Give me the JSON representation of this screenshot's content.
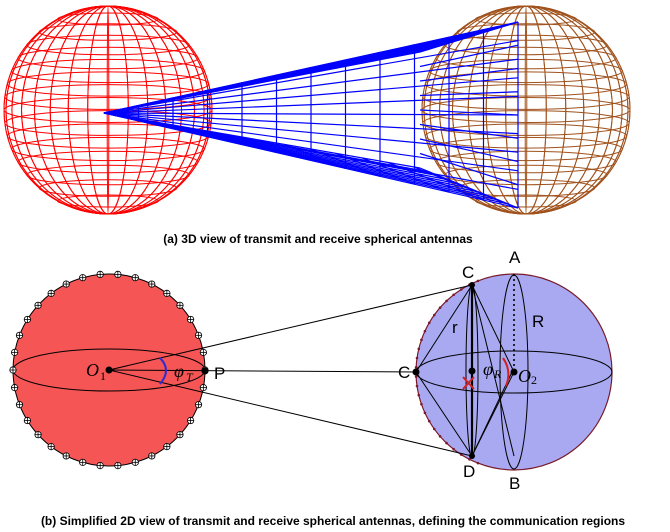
{
  "figure_a": {
    "caption": "(a) 3D view of transmit and receive spherical antennas",
    "colors": {
      "transmit_sphere": "#ff0000",
      "receive_sphere": "#a0521d",
      "beam_cone": "#0000ff"
    }
  },
  "figure_b": {
    "caption": "(b) Simplified 2D view of transmit and receive spherical antennas, defining the communication regions",
    "labels": {
      "o1_main": "O",
      "o1_sub": "1",
      "phi_t_main": "φ",
      "phi_t_sub": "T",
      "p": "P",
      "c_left": "C",
      "phi_r_main": "φ",
      "phi_r_sub": "R",
      "o2_main": "O",
      "o2_sub": "2",
      "c_top": "C",
      "a": "A",
      "r_small": "r",
      "r_big": "R",
      "d": "D",
      "b": "B"
    },
    "colors": {
      "transmit_fill": "#f65555",
      "receive_fill": "#a9a9f2",
      "angle_t": "#2b2bd8",
      "angle_r": "#d42020"
    }
  }
}
